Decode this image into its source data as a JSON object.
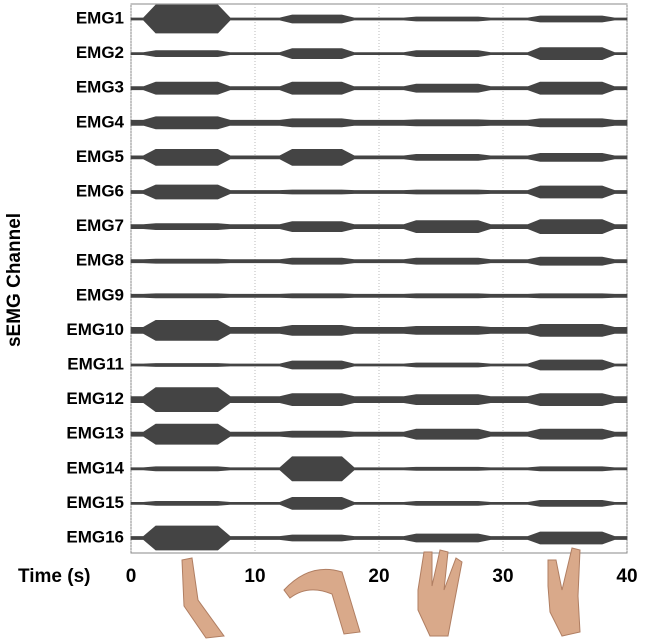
{
  "chart_data": {
    "type": "envelope",
    "x_label": "Time (s)",
    "y_label": "sEMG Channel",
    "xlim": [
      0,
      40
    ],
    "xticks": [
      0,
      10,
      20,
      30,
      40
    ],
    "grid": true,
    "color": "#444444",
    "x": [
      0,
      1,
      2,
      3,
      4,
      5,
      6,
      7,
      8,
      9,
      10,
      11,
      12,
      13,
      14,
      15,
      16,
      17,
      18,
      19,
      20,
      21,
      22,
      23,
      24,
      25,
      26,
      27,
      28,
      29,
      30,
      31,
      32,
      33,
      34,
      35,
      36,
      37,
      38,
      39,
      40
    ],
    "series": [
      {
        "name": "EMG1",
        "values": [
          1,
          1,
          14,
          14,
          14,
          14,
          14,
          14,
          1,
          1,
          1,
          1,
          1,
          4,
          4,
          4,
          4,
          4,
          1,
          1,
          1,
          1,
          1,
          2,
          2,
          2,
          2,
          2,
          2,
          1,
          1,
          1,
          1,
          3,
          3,
          3,
          3,
          3,
          3,
          1,
          1
        ]
      },
      {
        "name": "EMG2",
        "values": [
          1,
          1,
          3,
          3,
          3,
          3,
          3,
          3,
          1,
          1,
          1,
          1,
          1,
          5,
          5,
          5,
          5,
          5,
          1,
          1,
          1,
          1,
          1,
          3,
          3,
          3,
          3,
          3,
          3,
          1,
          1,
          1,
          1,
          6,
          6,
          6,
          6,
          6,
          6,
          1,
          1
        ]
      },
      {
        "name": "EMG3",
        "values": [
          1.5,
          1.5,
          6,
          6,
          6,
          6,
          6,
          6,
          1.5,
          1.5,
          1.5,
          1.5,
          1.5,
          6,
          6,
          6,
          6,
          6,
          1.5,
          1.5,
          1.5,
          1.5,
          1.5,
          4,
          4,
          4,
          4,
          4,
          4,
          1.5,
          1.5,
          1.5,
          1.5,
          6,
          6,
          6,
          6,
          6,
          6,
          1.5,
          1.5
        ]
      },
      {
        "name": "EMG4",
        "values": [
          2.5,
          2.5,
          6,
          6,
          6,
          6,
          6,
          6,
          2.5,
          2.5,
          2.5,
          2.5,
          2.5,
          4,
          4,
          4,
          4,
          4,
          2.5,
          2.5,
          2.5,
          2.5,
          2.5,
          3,
          3,
          3,
          3,
          3,
          3,
          2.5,
          2.5,
          2.5,
          2.5,
          4,
          4,
          4,
          4,
          4,
          4,
          2.5,
          2.5
        ]
      },
      {
        "name": "EMG5",
        "values": [
          1.5,
          1.5,
          8,
          8,
          8,
          8,
          8,
          8,
          1.5,
          1.5,
          1.5,
          1.5,
          1.5,
          8,
          8,
          8,
          8,
          8,
          1.5,
          1.5,
          1.5,
          1.5,
          1.5,
          3,
          3,
          3,
          3,
          3,
          3,
          1.5,
          1.5,
          1.5,
          1.5,
          4,
          4,
          4,
          4,
          4,
          4,
          1.5,
          1.5
        ]
      },
      {
        "name": "EMG6",
        "values": [
          1.5,
          1.5,
          7,
          7,
          7,
          7,
          7,
          7,
          1.5,
          1.5,
          1.5,
          1.5,
          1.5,
          2,
          2,
          2,
          2,
          2,
          1.5,
          1.5,
          1.5,
          1.5,
          1.5,
          2,
          2,
          2,
          2,
          2,
          2,
          1.5,
          1.5,
          1.5,
          1.5,
          6,
          6,
          6,
          6,
          6,
          6,
          1.5,
          1.5
        ]
      },
      {
        "name": "EMG7",
        "values": [
          2,
          2,
          3,
          3,
          3,
          3,
          3,
          3,
          2,
          2,
          2,
          2,
          2,
          5,
          5,
          5,
          5,
          5,
          2,
          2,
          2,
          2,
          2,
          6,
          6,
          6,
          6,
          6,
          6,
          2,
          2,
          2,
          2,
          7,
          7,
          7,
          7,
          7,
          7,
          2,
          2
        ]
      },
      {
        "name": "EMG8",
        "values": [
          1.5,
          1.5,
          2,
          2,
          2,
          2,
          2,
          2,
          1.5,
          1.5,
          1.5,
          1.5,
          1.5,
          3,
          3,
          3,
          3,
          3,
          1.5,
          1.5,
          1.5,
          1.5,
          1.5,
          3,
          3,
          3,
          3,
          3,
          3,
          1.5,
          1.5,
          1.5,
          1.5,
          4,
          4,
          4,
          4,
          4,
          4,
          1.5,
          1.5
        ]
      },
      {
        "name": "EMG9",
        "values": [
          1.5,
          1.5,
          2,
          2,
          2,
          2,
          2,
          2,
          1.5,
          1.5,
          1.5,
          1.5,
          1.5,
          2,
          2,
          2,
          2,
          2,
          1.5,
          1.5,
          1.5,
          1.5,
          1.5,
          2,
          2,
          2,
          2,
          2,
          2,
          1.5,
          1.5,
          1.5,
          1.5,
          2,
          2,
          2,
          2,
          2,
          2,
          1.5,
          1.5
        ]
      },
      {
        "name": "EMG10",
        "values": [
          3,
          3,
          10,
          10,
          10,
          10,
          10,
          10,
          3,
          3,
          3,
          3,
          3,
          5,
          5,
          5,
          5,
          5,
          3,
          3,
          3,
          3,
          3,
          4,
          4,
          4,
          4,
          4,
          4,
          3,
          3,
          3,
          3,
          6,
          6,
          6,
          6,
          6,
          6,
          3,
          3
        ]
      },
      {
        "name": "EMG11",
        "values": [
          1,
          1,
          1.5,
          1.5,
          1.5,
          1.5,
          1.5,
          1.5,
          1,
          1,
          1,
          1,
          1,
          4,
          4,
          4,
          4,
          4,
          1,
          1,
          1,
          1,
          1,
          2,
          2,
          2,
          2,
          2,
          2,
          1,
          1,
          1,
          1,
          5,
          5,
          5,
          5,
          5,
          5,
          1,
          1
        ]
      },
      {
        "name": "EMG12",
        "values": [
          3,
          3,
          12,
          12,
          12,
          12,
          12,
          12,
          3,
          3,
          3,
          3,
          3,
          6,
          6,
          6,
          6,
          6,
          3,
          3,
          3,
          3,
          3,
          5,
          5,
          5,
          5,
          5,
          5,
          3,
          3,
          3,
          3,
          6,
          6,
          6,
          6,
          6,
          6,
          3,
          3
        ]
      },
      {
        "name": "EMG13",
        "values": [
          2,
          2,
          10,
          10,
          10,
          10,
          10,
          10,
          2,
          2,
          2,
          2,
          2,
          3,
          3,
          3,
          3,
          3,
          2,
          2,
          2,
          2,
          2,
          5,
          5,
          5,
          5,
          5,
          5,
          2,
          2,
          2,
          2,
          5,
          5,
          5,
          5,
          5,
          5,
          2,
          2
        ]
      },
      {
        "name": "EMG14",
        "values": [
          1,
          1,
          2,
          2,
          2,
          2,
          2,
          2,
          1,
          1,
          1,
          1,
          1,
          12,
          12,
          12,
          12,
          12,
          1,
          1,
          1,
          1,
          1,
          1.5,
          1.5,
          1.5,
          1.5,
          1.5,
          1.5,
          1,
          1,
          1,
          1,
          2,
          2,
          2,
          2,
          2,
          2,
          1,
          1
        ]
      },
      {
        "name": "EMG15",
        "values": [
          1,
          1,
          2,
          2,
          2,
          2,
          2,
          2,
          1,
          1,
          1,
          1,
          1,
          6,
          6,
          6,
          6,
          6,
          1,
          1,
          1,
          1,
          1,
          2,
          2,
          2,
          2,
          2,
          2,
          1,
          1,
          1,
          1,
          3,
          3,
          3,
          3,
          3,
          3,
          1,
          1
        ]
      },
      {
        "name": "EMG16",
        "values": [
          1.5,
          1.5,
          12,
          12,
          12,
          12,
          12,
          12,
          1.5,
          1.5,
          1.5,
          1.5,
          1.5,
          3,
          3,
          3,
          3,
          3,
          1.5,
          1.5,
          1.5,
          1.5,
          1.5,
          4,
          4,
          4,
          4,
          4,
          4,
          1.5,
          1.5,
          1.5,
          1.5,
          6,
          6,
          6,
          6,
          6,
          6,
          1.5,
          1.5
        ]
      }
    ]
  }
}
